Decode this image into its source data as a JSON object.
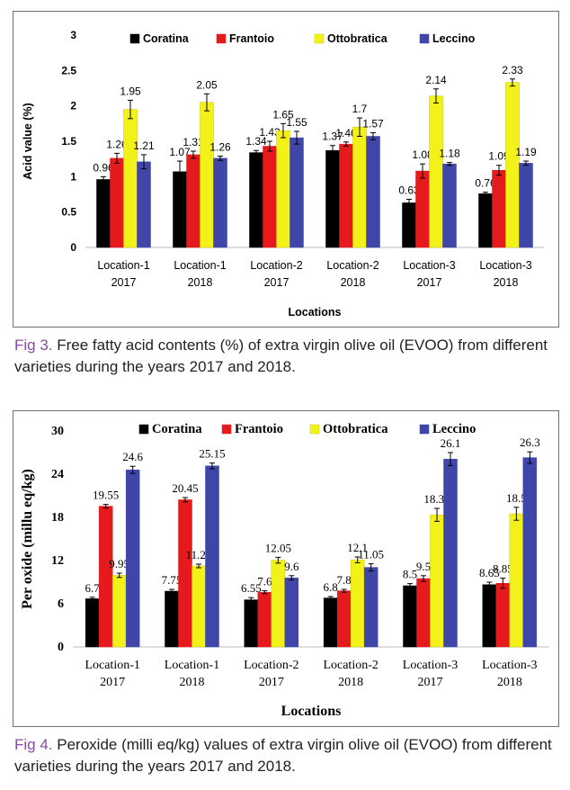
{
  "chart_data": [
    {
      "type": "bar",
      "title": "",
      "xlabel": "Locations",
      "ylabel": "Acid value (%)",
      "ylim": [
        0,
        3
      ],
      "yticks": [
        "0",
        "0.5",
        "1",
        "1.5",
        "2",
        "2.5",
        "3"
      ],
      "categories": [
        [
          "Location-1",
          "2017"
        ],
        [
          "Location-1",
          "2018"
        ],
        [
          "Location-2",
          "2017"
        ],
        [
          "Location-2",
          "2018"
        ],
        [
          "Location-3",
          "2017"
        ],
        [
          "Location-3",
          "2018"
        ]
      ],
      "legend_position": "top",
      "series": [
        {
          "name": "Coratina",
          "color": "#000000",
          "values": [
            0.96,
            1.07,
            1.34,
            1.37,
            0.63,
            0.76
          ],
          "labels": [
            "0.96",
            "1.07",
            "1.34",
            "1.37",
            "0.63",
            "0.76"
          ],
          "errors": [
            0.04,
            0.15,
            0.03,
            0.07,
            0.05,
            0.02
          ]
        },
        {
          "name": "Frantoio",
          "color": "#e41a1c",
          "values": [
            1.26,
            1.31,
            1.43,
            1.46,
            1.08,
            1.09
          ],
          "labels": [
            "1.26",
            "1.31",
            "1.43",
            "1.46",
            "1.08",
            "1.09"
          ],
          "errors": [
            0.07,
            0.05,
            0.07,
            0.03,
            0.1,
            0.07
          ]
        },
        {
          "name": "Ottobratica",
          "color": "#f2f21a",
          "values": [
            1.95,
            2.05,
            1.65,
            1.7,
            2.14,
            2.33
          ],
          "labels": [
            "1.95",
            "2.05",
            "1.65",
            "1.7",
            "2.14",
            "2.33"
          ],
          "errors": [
            0.13,
            0.12,
            0.1,
            0.13,
            0.1,
            0.05
          ]
        },
        {
          "name": "Leccino",
          "color": "#3f46a8",
          "values": [
            1.21,
            1.26,
            1.55,
            1.57,
            1.18,
            1.19
          ],
          "labels": [
            "1.21",
            "1.26",
            "1.55",
            "1.57",
            "1.18",
            "1.19"
          ],
          "errors": [
            0.1,
            0.03,
            0.09,
            0.05,
            0.02,
            0.03
          ]
        }
      ]
    },
    {
      "type": "bar",
      "title": "",
      "xlabel": "Locations",
      "ylabel": "Per oxide (millu eq/kg)",
      "ylim": [
        0,
        30
      ],
      "yticks": [
        "0",
        "6",
        "12",
        "18",
        "24",
        "30"
      ],
      "categories": [
        [
          "Location-1",
          "2017"
        ],
        [
          "Location-1",
          "2018"
        ],
        [
          "Location-2",
          "2017"
        ],
        [
          "Location-2",
          "2018"
        ],
        [
          "Location-3",
          "2017"
        ],
        [
          "Location-3",
          "2018"
        ]
      ],
      "legend_position": "top",
      "series": [
        {
          "name": "Coratina",
          "color": "#000000",
          "values": [
            6.7,
            7.75,
            6.55,
            6.8,
            8.5,
            8.65
          ],
          "labels": [
            "6.7",
            "7.75",
            "6.55",
            "6.8",
            "8.5",
            "8.65"
          ],
          "errors": [
            0.2,
            0.25,
            0.3,
            0.2,
            0.3,
            0.35
          ]
        },
        {
          "name": "Frantoio",
          "color": "#e41a1c",
          "values": [
            19.55,
            20.45,
            7.6,
            7.8,
            9.5,
            8.85
          ],
          "labels": [
            "19.55",
            "20.45",
            "7.6",
            "7.8",
            "9.5",
            "8.85"
          ],
          "errors": [
            0.25,
            0.3,
            0.2,
            0.2,
            0.4,
            0.7
          ]
        },
        {
          "name": "Ottobratica",
          "color": "#f2f21a",
          "values": [
            9.95,
            11.25,
            12.05,
            12.1,
            18.35,
            18.5
          ],
          "labels": [
            "9.95",
            "11.25",
            "12.05",
            "12.1",
            "18.35",
            "18.5"
          ],
          "errors": [
            0.3,
            0.25,
            0.4,
            0.4,
            0.9,
            0.9
          ]
        },
        {
          "name": "Leccino",
          "color": "#3f46a8",
          "values": [
            24.6,
            25.15,
            9.6,
            11.05,
            26.1,
            26.3
          ],
          "labels": [
            "24.6",
            "25.15",
            "9.6",
            "11.05",
            "26.1",
            "26.3"
          ],
          "errors": [
            0.5,
            0.4,
            0.3,
            0.5,
            0.9,
            0.8
          ]
        }
      ]
    }
  ],
  "captions": [
    {
      "fig": "Fig 3.",
      "text": " Free fatty acid contents (%) of extra virgin olive oil (EVOO) from different varieties during the years 2017 and 2018."
    },
    {
      "fig": "Fig 4.",
      "text": " Peroxide (milli eq/kg) values of extra virgin olive oil (EVOO) from different varieties during the years 2017 and 2018."
    }
  ]
}
